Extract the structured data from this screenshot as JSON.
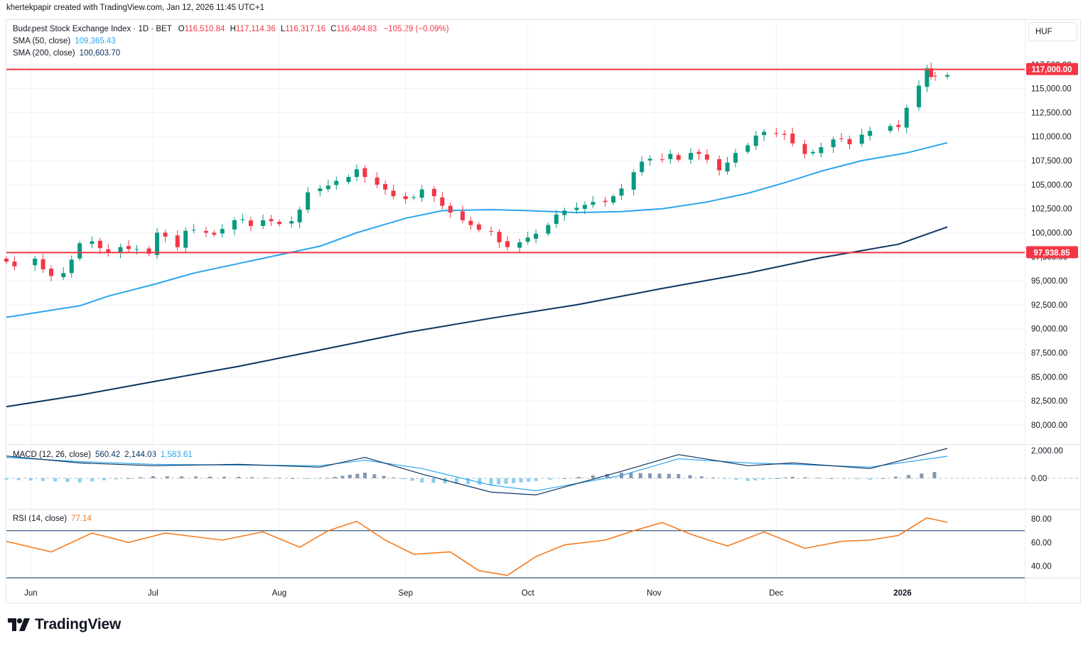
{
  "header": {
    "author": "khertekpapir",
    "created_text": "khertekpapir created with TradingView.com, Jan 12, 2026 11:45 UTC+1"
  },
  "symbol": {
    "name": "Budapest Stock Exchange Index · 1D · BET",
    "open_label": "O",
    "open": "116,510.84",
    "high_label": "H",
    "high": "117,114.36",
    "low_label": "L",
    "low": "116,317.16",
    "close_label": "C",
    "close": "116,404.83",
    "change": "−105.29 (−0.09%)"
  },
  "indicators": {
    "sma50": {
      "label": "SMA (50, close)",
      "value": "109,365.43"
    },
    "sma200": {
      "label": "SMA (200, close)",
      "value": "100,603.70"
    },
    "macd": {
      "label": "MACD (12, 26, close)",
      "hist": "560.42",
      "macd": "2,144.03",
      "signal": "1,583.61"
    },
    "rsi": {
      "label": "RSI (14, close)",
      "value": "77.14"
    }
  },
  "currency": "HUF",
  "brand": "TradingView",
  "colors": {
    "up": "#089981",
    "down": "#f23645",
    "sma50": "#2ba6ed",
    "sma200": "#0c3461",
    "hline": "#f23645",
    "rsi": "#f57c1f",
    "macd_line": "#0c3461",
    "signal_line": "#2ba6ed",
    "hist_pos": "#8497b0",
    "hist_neg": "#89cff0"
  },
  "chart_data": [
    {
      "type": "candlestick",
      "title": "Budapest Stock Exchange Index · 1D · BET",
      "x_range": [
        "2025-05-26",
        "2026-01-12"
      ],
      "x_tick_labels": [
        "Jun",
        "Jul",
        "Aug",
        "Sep",
        "Oct",
        "Nov",
        "Dec",
        "2026"
      ],
      "x_tick_dates": [
        "2025-06-01",
        "2025-07-01",
        "2025-08-01",
        "2025-09-01",
        "2025-10-01",
        "2025-11-01",
        "2025-12-01",
        "2026-01-01"
      ],
      "ylim": [
        78000,
        120000
      ],
      "y_ticks": [
        80000,
        82500,
        85000,
        87500,
        90000,
        92500,
        95000,
        97500,
        100000,
        102500,
        105000,
        107500,
        110000,
        112500,
        115000,
        117500
      ],
      "y_tick_labels": [
        "80,000.00",
        "82,500.00",
        "85,000.00",
        "87,500.00",
        "90,000.00",
        "92,500.00",
        "95,000.00",
        "97,500.00",
        "100,000.00",
        "102,500.00",
        "105,000.00",
        "107,500.00",
        "110,000.00",
        "112,500.00",
        "115,000.00",
        "117,500.00"
      ],
      "close_series": [
        [
          "2025-05-26",
          97000
        ],
        [
          "2025-05-28",
          96500
        ],
        [
          "2025-06-02",
          97300
        ],
        [
          "2025-06-04",
          96200
        ],
        [
          "2025-06-06",
          95500
        ],
        [
          "2025-06-09",
          95800
        ],
        [
          "2025-06-11",
          97200
        ],
        [
          "2025-06-13",
          98900
        ],
        [
          "2025-06-16",
          99100
        ],
        [
          "2025-06-18",
          98400
        ],
        [
          "2025-06-20",
          97900
        ],
        [
          "2025-06-23",
          98500
        ],
        [
          "2025-06-25",
          98300
        ],
        [
          "2025-06-27",
          98300
        ],
        [
          "2025-06-30",
          97800
        ],
        [
          "2025-07-02",
          100000
        ],
        [
          "2025-07-04",
          99600
        ],
        [
          "2025-07-07",
          98500
        ],
        [
          "2025-07-09",
          100200
        ],
        [
          "2025-07-11",
          100300
        ],
        [
          "2025-07-14",
          100000
        ],
        [
          "2025-07-16",
          99800
        ],
        [
          "2025-07-18",
          100400
        ],
        [
          "2025-07-21",
          101300
        ],
        [
          "2025-07-23",
          101400
        ],
        [
          "2025-07-25",
          100700
        ],
        [
          "2025-07-28",
          101300
        ],
        [
          "2025-07-30",
          101200
        ],
        [
          "2025-08-01",
          100900
        ],
        [
          "2025-08-04",
          101200
        ],
        [
          "2025-08-06",
          102400
        ],
        [
          "2025-08-08",
          104200
        ],
        [
          "2025-08-11",
          104600
        ],
        [
          "2025-08-13",
          104900
        ],
        [
          "2025-08-15",
          105400
        ],
        [
          "2025-08-18",
          105800
        ],
        [
          "2025-08-20",
          106600
        ],
        [
          "2025-08-22",
          105800
        ],
        [
          "2025-08-25",
          105000
        ],
        [
          "2025-08-27",
          104500
        ],
        [
          "2025-08-29",
          103800
        ],
        [
          "2025-09-01",
          103500
        ],
        [
          "2025-09-03",
          103700
        ],
        [
          "2025-09-05",
          104500
        ],
        [
          "2025-09-08",
          103800
        ],
        [
          "2025-09-10",
          102800
        ],
        [
          "2025-09-12",
          102100
        ],
        [
          "2025-09-15",
          101300
        ],
        [
          "2025-09-17",
          100800
        ],
        [
          "2025-09-19",
          100300
        ],
        [
          "2025-09-22",
          100100
        ],
        [
          "2025-09-24",
          99000
        ],
        [
          "2025-09-26",
          98500
        ],
        [
          "2025-09-29",
          99000
        ],
        [
          "2025-10-01",
          99500
        ],
        [
          "2025-10-03",
          99900
        ],
        [
          "2025-10-06",
          100800
        ],
        [
          "2025-10-08",
          101900
        ],
        [
          "2025-10-10",
          102300
        ],
        [
          "2025-10-13",
          102600
        ],
        [
          "2025-10-15",
          102900
        ],
        [
          "2025-10-17",
          103200
        ],
        [
          "2025-10-20",
          103200
        ],
        [
          "2025-10-22",
          103800
        ],
        [
          "2025-10-24",
          104600
        ],
        [
          "2025-10-27",
          106300
        ],
        [
          "2025-10-29",
          107400
        ],
        [
          "2025-10-31",
          107700
        ],
        [
          "2025-11-03",
          107600
        ],
        [
          "2025-11-05",
          108200
        ],
        [
          "2025-11-07",
          107600
        ],
        [
          "2025-11-10",
          108300
        ],
        [
          "2025-11-12",
          108200
        ],
        [
          "2025-11-14",
          107600
        ],
        [
          "2025-11-17",
          106500
        ],
        [
          "2025-11-19",
          107300
        ],
        [
          "2025-11-21",
          108300
        ],
        [
          "2025-11-24",
          109100
        ],
        [
          "2025-11-26",
          110100
        ],
        [
          "2025-11-28",
          110500
        ],
        [
          "2025-12-01",
          110300
        ],
        [
          "2025-12-03",
          110200
        ],
        [
          "2025-12-05",
          109300
        ],
        [
          "2025-12-08",
          108200
        ],
        [
          "2025-12-10",
          108400
        ],
        [
          "2025-12-12",
          108900
        ],
        [
          "2025-12-15",
          109700
        ],
        [
          "2025-12-17",
          109800
        ],
        [
          "2025-12-19",
          109200
        ],
        [
          "2025-12-22",
          110200
        ],
        [
          "2025-12-24",
          110600
        ],
        [
          "2025-12-29",
          111100
        ],
        [
          "2025-12-31",
          111000
        ],
        [
          "2026-01-02",
          113000
        ],
        [
          "2026-01-05",
          115300
        ],
        [
          "2026-01-07",
          117100
        ],
        [
          "2026-01-08",
          116200
        ],
        [
          "2026-01-09",
          116300
        ],
        [
          "2026-01-12",
          116404.83
        ]
      ],
      "sma50_series": [
        [
          "2025-05-26",
          91200
        ],
        [
          "2025-06-04",
          91800
        ],
        [
          "2025-06-13",
          92400
        ],
        [
          "2025-06-20",
          93400
        ],
        [
          "2025-07-01",
          94600
        ],
        [
          "2025-07-11",
          95800
        ],
        [
          "2025-07-22",
          96800
        ],
        [
          "2025-08-01",
          97700
        ],
        [
          "2025-08-11",
          98600
        ],
        [
          "2025-08-20",
          100000
        ],
        [
          "2025-09-01",
          101500
        ],
        [
          "2025-09-10",
          102300
        ],
        [
          "2025-09-22",
          102400
        ],
        [
          "2025-10-01",
          102300
        ],
        [
          "2025-10-13",
          102100
        ],
        [
          "2025-10-24",
          102200
        ],
        [
          "2025-11-03",
          102500
        ],
        [
          "2025-11-14",
          103200
        ],
        [
          "2025-11-24",
          104100
        ],
        [
          "2025-12-03",
          105200
        ],
        [
          "2025-12-12",
          106400
        ],
        [
          "2025-12-22",
          107500
        ],
        [
          "2026-01-02",
          108300
        ],
        [
          "2026-01-12",
          109365.43
        ]
      ],
      "sma200_series": [
        [
          "2025-05-26",
          81900
        ],
        [
          "2025-06-13",
          83100
        ],
        [
          "2025-07-01",
          84500
        ],
        [
          "2025-07-22",
          86100
        ],
        [
          "2025-08-11",
          87800
        ],
        [
          "2025-09-01",
          89600
        ],
        [
          "2025-09-22",
          91100
        ],
        [
          "2025-10-13",
          92500
        ],
        [
          "2025-11-03",
          94200
        ],
        [
          "2025-11-24",
          95800
        ],
        [
          "2025-12-12",
          97400
        ],
        [
          "2025-12-31",
          98800
        ],
        [
          "2026-01-12",
          100603.7
        ]
      ],
      "hlines": [
        {
          "value": 117000,
          "label": "117,000.00"
        },
        {
          "value": 97938.85,
          "label": "97,938.85"
        }
      ]
    },
    {
      "type": "line",
      "title": "MACD (12, 26, close)",
      "ylim": [
        -2200,
        2400
      ],
      "y_ticks": [
        0,
        2000
      ],
      "y_tick_labels": [
        "0.00",
        "2,000.00"
      ],
      "series": [
        {
          "name": "MACD",
          "values": [
            [
              "2025-05-26",
              1600
            ],
            [
              "2025-06-13",
              1100
            ],
            [
              "2025-07-01",
              900
            ],
            [
              "2025-07-22",
              1000
            ],
            [
              "2025-08-11",
              800
            ],
            [
              "2025-08-22",
              1500
            ],
            [
              "2025-09-05",
              300
            ],
            [
              "2025-09-22",
              -1000
            ],
            [
              "2025-10-03",
              -1200
            ],
            [
              "2025-10-24",
              500
            ],
            [
              "2025-11-07",
              1700
            ],
            [
              "2025-11-24",
              900
            ],
            [
              "2025-12-05",
              1100
            ],
            [
              "2025-12-24",
              700
            ],
            [
              "2026-01-12",
              2144.03
            ]
          ]
        },
        {
          "name": "Signal",
          "values": [
            [
              "2025-05-26",
              1500
            ],
            [
              "2025-06-13",
              1200
            ],
            [
              "2025-07-01",
              1000
            ],
            [
              "2025-07-22",
              950
            ],
            [
              "2025-08-11",
              900
            ],
            [
              "2025-08-22",
              1300
            ],
            [
              "2025-09-05",
              700
            ],
            [
              "2025-09-22",
              -500
            ],
            [
              "2025-10-03",
              -900
            ],
            [
              "2025-10-24",
              200
            ],
            [
              "2025-11-07",
              1400
            ],
            [
              "2025-11-24",
              1100
            ],
            [
              "2025-12-05",
              1000
            ],
            [
              "2025-12-24",
              800
            ],
            [
              "2026-01-12",
              1583.61
            ]
          ]
        },
        {
          "name": "Histogram",
          "values": [
            [
              "2025-05-26",
              -100
            ],
            [
              "2025-06-13",
              -300
            ],
            [
              "2025-07-01",
              150
            ],
            [
              "2025-07-22",
              100
            ],
            [
              "2025-08-11",
              -50
            ],
            [
              "2025-08-22",
              400
            ],
            [
              "2025-09-05",
              -300
            ],
            [
              "2025-09-22",
              -500
            ],
            [
              "2025-10-03",
              -200
            ],
            [
              "2025-10-24",
              400
            ],
            [
              "2025-11-07",
              300
            ],
            [
              "2025-11-24",
              -200
            ],
            [
              "2025-12-05",
              100
            ],
            [
              "2025-12-24",
              -100
            ],
            [
              "2026-01-12",
              560.42
            ]
          ]
        }
      ]
    },
    {
      "type": "line",
      "title": "RSI (14, close)",
      "ylim": [
        30,
        88
      ],
      "y_ticks": [
        40,
        60,
        80
      ],
      "y_tick_labels": [
        "40.00",
        "60.00",
        "80.00"
      ],
      "band": [
        30,
        70
      ],
      "series": [
        {
          "name": "RSI",
          "values": [
            [
              "2025-05-26",
              61
            ],
            [
              "2025-06-06",
              52
            ],
            [
              "2025-06-16",
              68
            ],
            [
              "2025-06-25",
              60
            ],
            [
              "2025-07-04",
              68
            ],
            [
              "2025-07-18",
              62
            ],
            [
              "2025-07-28",
              69
            ],
            [
              "2025-08-06",
              56
            ],
            [
              "2025-08-13",
              70
            ],
            [
              "2025-08-20",
              78
            ],
            [
              "2025-08-27",
              62
            ],
            [
              "2025-09-03",
              50
            ],
            [
              "2025-09-12",
              52
            ],
            [
              "2025-09-19",
              36
            ],
            [
              "2025-09-26",
              32
            ],
            [
              "2025-10-03",
              48
            ],
            [
              "2025-10-10",
              58
            ],
            [
              "2025-10-20",
              62
            ],
            [
              "2025-10-27",
              70
            ],
            [
              "2025-11-03",
              77
            ],
            [
              "2025-11-10",
              67
            ],
            [
              "2025-11-19",
              57
            ],
            [
              "2025-11-28",
              69
            ],
            [
              "2025-12-08",
              55
            ],
            [
              "2025-12-17",
              61
            ],
            [
              "2025-12-24",
              62
            ],
            [
              "2025-12-31",
              66
            ],
            [
              "2026-01-07",
              81
            ],
            [
              "2026-01-12",
              77.14
            ]
          ]
        }
      ]
    }
  ]
}
